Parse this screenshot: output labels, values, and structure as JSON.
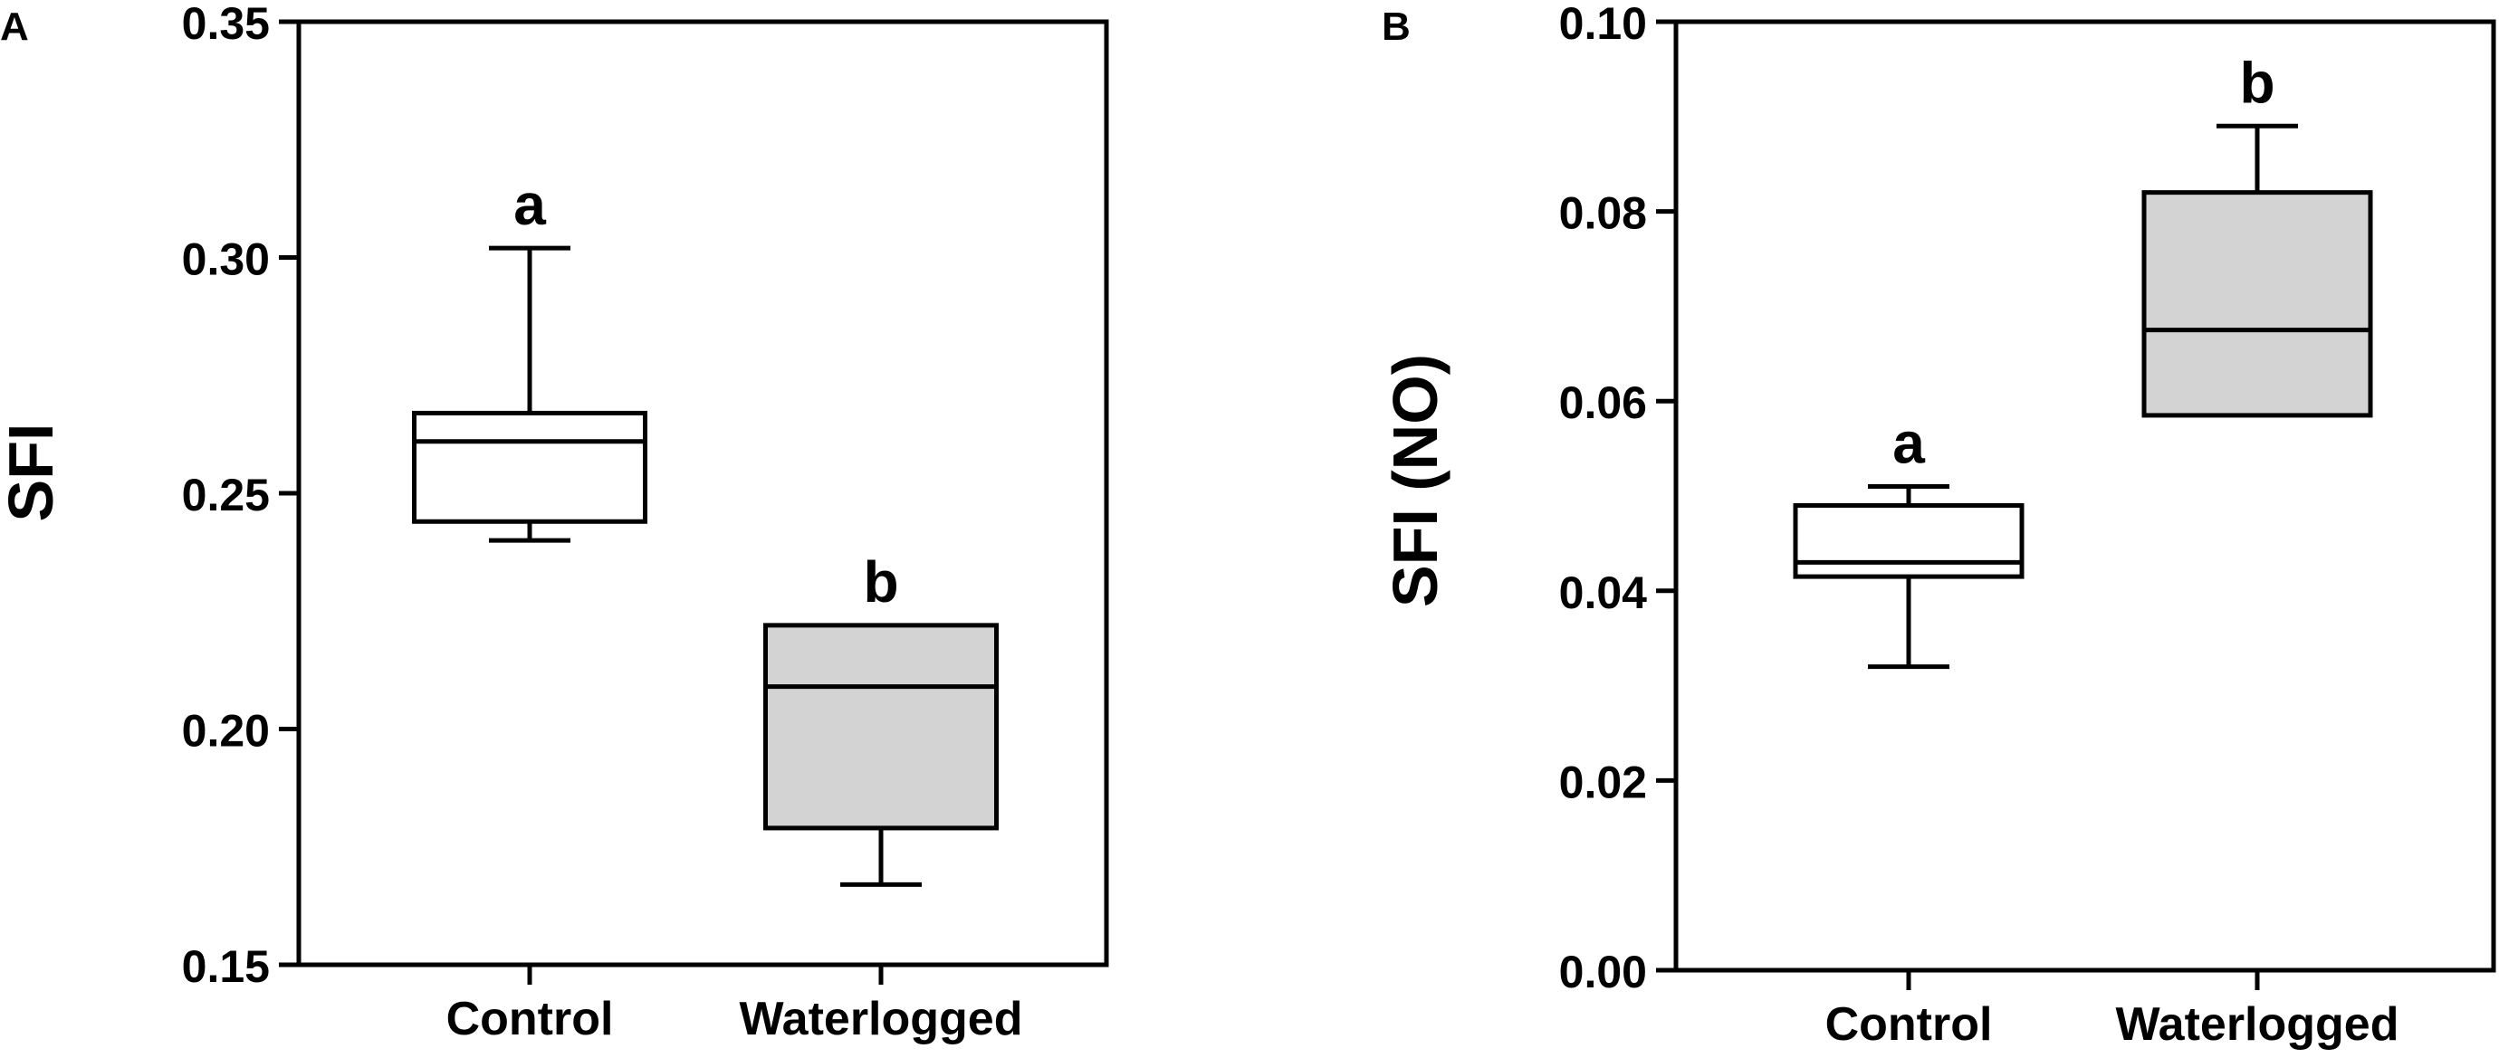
{
  "chart_data": [
    {
      "panel_label": "A",
      "type": "box",
      "ylabel": "SFI",
      "xlabel": "",
      "ylim": [
        0.15,
        0.35
      ],
      "yticks": [
        0.15,
        0.2,
        0.25,
        0.3,
        0.35
      ],
      "ytick_labels": [
        "0.15",
        "0.20",
        "0.25",
        "0.30",
        "0.35"
      ],
      "categories": [
        "Control",
        "Waterlogged"
      ],
      "boxes": [
        {
          "category": "Control",
          "min": 0.24,
          "q1": 0.244,
          "median": 0.261,
          "q3": 0.267,
          "max": 0.302,
          "fill": "#ffffff",
          "letter": "a"
        },
        {
          "category": "Waterlogged",
          "min": 0.167,
          "q1": 0.179,
          "median": 0.209,
          "q3": 0.222,
          "max": 0.222,
          "fill": "#d3d3d3",
          "letter": "b"
        }
      ],
      "grid": false,
      "legend": "none"
    },
    {
      "panel_label": "B",
      "type": "box",
      "ylabel": "SFI (NO)",
      "xlabel": "",
      "ylim": [
        0.0,
        0.1
      ],
      "yticks": [
        0.0,
        0.02,
        0.04,
        0.06,
        0.08,
        0.1
      ],
      "ytick_labels": [
        "0.00",
        "0.02",
        "0.04",
        "0.06",
        "0.08",
        "0.10"
      ],
      "categories": [
        "Control",
        "Waterlogged"
      ],
      "boxes": [
        {
          "category": "Control",
          "min": 0.032,
          "q1": 0.0415,
          "median": 0.043,
          "q3": 0.049,
          "max": 0.051,
          "fill": "#ffffff",
          "letter": "a"
        },
        {
          "category": "Waterlogged",
          "min": 0.0585,
          "q1": 0.0585,
          "median": 0.0675,
          "q3": 0.082,
          "max": 0.089,
          "fill": "#d3d3d3",
          "letter": "b"
        }
      ],
      "grid": false,
      "legend": "none"
    }
  ]
}
